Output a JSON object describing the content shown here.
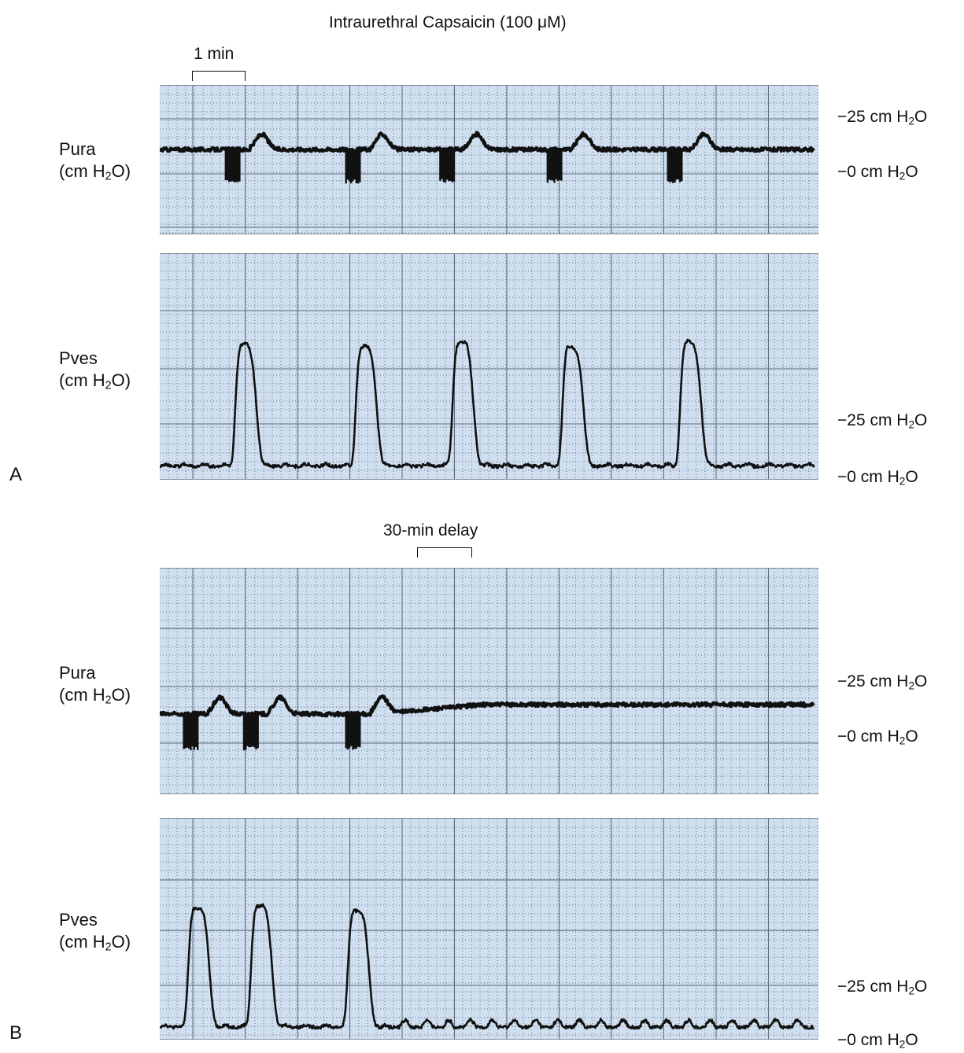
{
  "figure": {
    "title": "Intraurethral Capsaicin (100 μM)",
    "scale_bar_a": "1 min",
    "scale_bar_b": "30-min delay",
    "panel_a_letter": "A",
    "panel_b_letter": "B",
    "scale_high": "−25 cm H",
    "scale_low": "−0 cm H",
    "scale_sub": "2",
    "scale_tail": "O",
    "pura_name": "Pura",
    "pves_name": "Pves",
    "unit_open": "(cm H",
    "unit_sub": "2",
    "unit_close": "O)"
  },
  "chart_data": [
    {
      "type": "line",
      "panel": "A",
      "channel": "Pura",
      "y_ticks": [
        "0 cm H2O",
        "25 cm H2O"
      ],
      "x_unit": "min (1-min scale bar)",
      "baseline_cmH2O": 11,
      "event_times_min": [
        1.35,
        3.65,
        5.45,
        7.5,
        9.8
      ],
      "dip_to_cmH2O": -3,
      "rebound_cmH2O": 18,
      "duration_min": 12.5
    },
    {
      "type": "line",
      "panel": "A",
      "channel": "Pves",
      "y_ticks": [
        "0 cm H2O",
        "25 cm H2O"
      ],
      "baseline_cmH2O": 0,
      "peak_times_min": [
        1.6,
        3.9,
        5.75,
        7.85,
        10.1
      ],
      "peak_cmH2O": [
        53,
        52,
        54,
        52,
        54
      ],
      "duration_min": 12.5
    },
    {
      "type": "line",
      "panel": "B",
      "channel": "Pura",
      "y_ticks": [
        "0 cm H2O",
        "25 cm H2O"
      ],
      "baseline_cmH2O": 11,
      "event_times_min": [
        0.55,
        1.7,
        3.65
      ],
      "dip_to_cmH2O": -3,
      "rebound_cmH2O": 18,
      "late_baseline_cmH2O": 15,
      "duration_min": 12.5
    },
    {
      "type": "line",
      "panel": "B",
      "channel": "Pves",
      "y_ticks": [
        "0 cm H2O",
        "25 cm H2O"
      ],
      "baseline_cmH2O": 1,
      "peak_times_min": [
        0.7,
        1.9,
        3.75
      ],
      "peak_cmH2O": [
        53,
        54,
        52
      ],
      "small_wave_amplitude_cmH2O": 3,
      "duration_min": 12.5
    }
  ]
}
